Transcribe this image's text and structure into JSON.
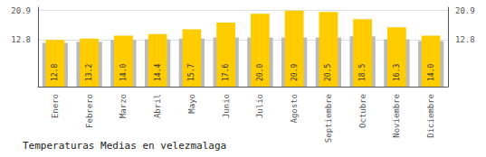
{
  "chart_data": {
    "type": "bar",
    "title": "Temperaturas Medias en velezmalaga",
    "categories": [
      "Enero",
      "Febrero",
      "Marzo",
      "Abril",
      "Mayo",
      "Junio",
      "Julio",
      "Agosto",
      "Septiembre",
      "Octubre",
      "Noviembre",
      "Diciembre"
    ],
    "series": [
      {
        "type": "bar",
        "color": "#BBBBBB",
        "values": [
          12.0,
          12.3,
          12.8,
          13.0,
          13.2,
          13.5,
          13.5,
          13.5,
          13.5,
          13.8,
          13.0,
          12.5
        ]
      },
      {
        "type": "bar",
        "color": "#FFCC00",
        "data_labels": true,
        "values": [
          12.8,
          13.2,
          14.0,
          14.4,
          15.7,
          17.6,
          20.0,
          20.9,
          20.5,
          18.5,
          16.3,
          14.0
        ],
        "value_labels": [
          "12.8",
          "13.2",
          "14.0",
          "14.4",
          "15.7",
          "17.6",
          "20.0",
          "20.9",
          "20.5",
          "18.5",
          "16.3",
          "14.0"
        ]
      }
    ],
    "ylim": [
      0,
      21.8
    ],
    "yticks": [
      12.8,
      20.9
    ],
    "y2lim": [
      0,
      21.8
    ],
    "y2ticks": [
      12.8,
      20.9
    ],
    "grid": true
  }
}
